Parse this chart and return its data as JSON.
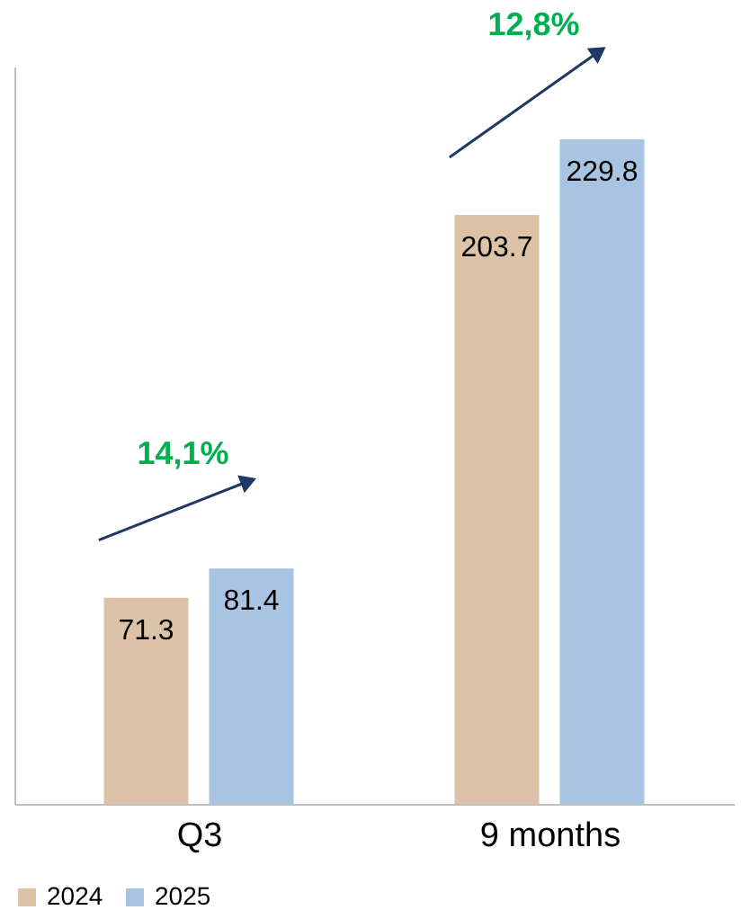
{
  "chart_data": {
    "type": "bar",
    "categories": [
      "Q3",
      "9 months"
    ],
    "series": [
      {
        "name": "2024",
        "color": "#dcc3a8",
        "values": [
          71.3,
          203.7
        ]
      },
      {
        "name": "2025",
        "color": "#a9c4e2",
        "values": [
          81.4,
          229.8
        ]
      }
    ],
    "data_labels": true,
    "ylim": [
      0,
      255
    ],
    "tick_labels": "x",
    "grid": false,
    "legend": "bottom",
    "annotations": [
      "14,1%",
      "12,8%"
    ]
  }
}
